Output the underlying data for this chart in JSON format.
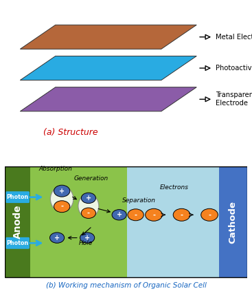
{
  "title_a": "(a) Structure",
  "title_b": "(b) Working mechanism of Organic Solar Cell",
  "layer_colors": [
    "#b5673a",
    "#29abe2",
    "#8b5ca8"
  ],
  "layer_labels": [
    "Metal Electrode",
    "Photoactive Layer",
    "Transparent\nElectrode"
  ],
  "anode_dark": "#4a7a1e",
  "bg_green": "#8bc34a",
  "bg_blue": "#add8e6",
  "cathode_dark": "#4472c4",
  "orange_color": "#f5821f",
  "blue_dot_color": "#4169b0",
  "photon_color": "#29abe2",
  "text_red": "#cc0000",
  "text_blue": "#1565c0",
  "white": "#ffffff",
  "black": "#000000"
}
